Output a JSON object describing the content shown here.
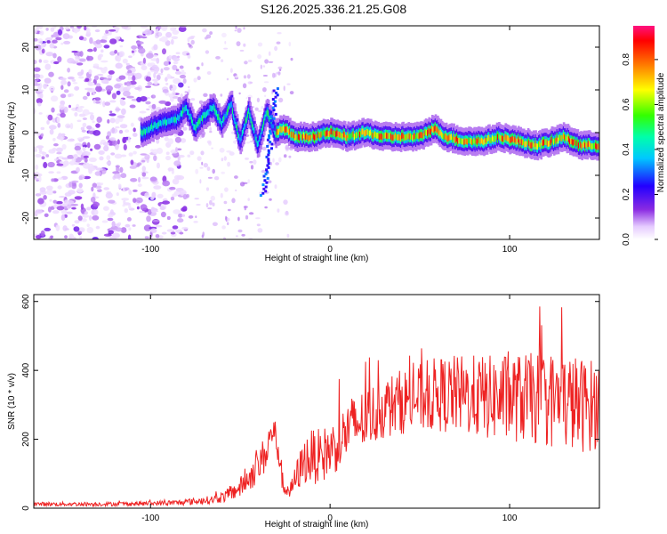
{
  "title": "S126.2025.336.21.25.G08",
  "chart_data": [
    {
      "type": "heatmap",
      "title": "S126.2025.336.21.25.G08",
      "xlabel": "Height of straight line (km)",
      "ylabel": "Frequency (Hz)",
      "xlim": [
        -165,
        150
      ],
      "ylim": [
        -25,
        25
      ],
      "x_ticks": [
        -100,
        0,
        100
      ],
      "x_tick_labels": [
        "-100",
        "0",
        "100"
      ],
      "y_ticks": [
        -20,
        -10,
        0,
        10,
        20
      ],
      "y_tick_labels": [
        "-20",
        "-10",
        "0",
        "10",
        "20"
      ],
      "colorbar": {
        "label": "Normalized spectral amplitude",
        "range": [
          0,
          0.95
        ],
        "ticks": [
          0.0,
          0.2,
          0.4,
          0.6,
          0.8
        ],
        "tick_labels": [
          "0.0",
          "0.2",
          "0.4",
          "0.6",
          "0.8"
        ]
      },
      "ridge": {
        "description": "dominant frequency track vs height",
        "x": [
          -105,
          -95,
          -85,
          -80,
          -75,
          -70,
          -65,
          -60,
          -55,
          -50,
          -45,
          -40,
          -35,
          -30,
          -25,
          -20,
          -10,
          0,
          10,
          20,
          30,
          40,
          50,
          58,
          65,
          75,
          85,
          95,
          105,
          115,
          125,
          130,
          140,
          150
        ],
        "y": [
          0,
          2,
          3,
          6,
          1,
          4,
          6,
          2,
          7,
          -2,
          5,
          -3,
          5,
          0,
          1,
          -1,
          -1,
          0,
          -1,
          0,
          -1,
          -1,
          -1,
          1,
          -1,
          -2,
          -2,
          -1,
          -2,
          -3,
          -2,
          -1,
          -3,
          -3
        ]
      }
    },
    {
      "type": "line",
      "xlabel": "Height of straight line (km)",
      "ylabel": "SNR (10 * v/v)",
      "xlim": [
        -165,
        150
      ],
      "ylim": [
        0,
        620
      ],
      "x_ticks": [
        -100,
        0,
        100
      ],
      "x_tick_labels": [
        "-100",
        "0",
        "100"
      ],
      "y_ticks": [
        0,
        200,
        400,
        600
      ],
      "y_tick_labels": [
        "0",
        "200",
        "400",
        "600"
      ],
      "series": [
        {
          "name": "SNR",
          "color": "#ee2222",
          "envelope_x": [
            -165,
            -140,
            -120,
            -100,
            -85,
            -75,
            -65,
            -58,
            -50,
            -45,
            -40,
            -35,
            -32,
            -29,
            -26,
            -22,
            -18,
            -14,
            -10,
            -5,
            0,
            5,
            10,
            20,
            30,
            40,
            50,
            60,
            70,
            80,
            90,
            100,
            110,
            120,
            130,
            140,
            150
          ],
          "envelope_mean": [
            12,
            12,
            12,
            14,
            16,
            20,
            25,
            35,
            60,
            90,
            120,
            170,
            230,
            180,
            60,
            50,
            100,
            140,
            150,
            150,
            170,
            190,
            230,
            260,
            290,
            310,
            320,
            330,
            330,
            325,
            320,
            320,
            320,
            315,
            310,
            300,
            300
          ],
          "envelope_amp": [
            6,
            6,
            6,
            7,
            8,
            10,
            12,
            18,
            30,
            40,
            50,
            60,
            50,
            60,
            25,
            25,
            50,
            70,
            80,
            80,
            80,
            80,
            90,
            90,
            90,
            95,
            100,
            110,
            115,
            120,
            125,
            130,
            130,
            140,
            145,
            140,
            130
          ]
        }
      ]
    }
  ],
  "colors": {
    "axis": "#000000",
    "line": "#ee2222"
  }
}
